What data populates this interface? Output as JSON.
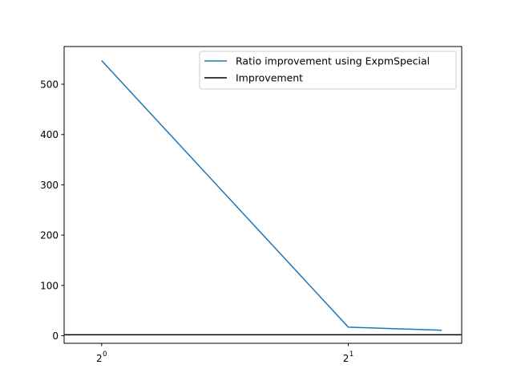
{
  "chart_data": {
    "type": "line",
    "xscale": "log2",
    "xlim": [
      0.9,
      2.75
    ],
    "ylim": [
      -15,
      575
    ],
    "x_ticks": [
      {
        "value": 1,
        "base": "2",
        "exp": "0"
      },
      {
        "value": 2,
        "base": "2",
        "exp": "1"
      }
    ],
    "y_ticks": [
      0,
      100,
      200,
      300,
      400,
      500
    ],
    "series": [
      {
        "name": "Ratio improvement using ExpmSpecial",
        "color": "#1f77b4",
        "x": [
          1,
          2,
          2.6
        ],
        "y": [
          547,
          17,
          11
        ]
      }
    ],
    "reference_line": {
      "name": "Improvement",
      "y": 2,
      "color": "#000000"
    },
    "legend": {
      "placement": "top-right",
      "items": [
        {
          "label": "Ratio improvement using ExpmSpecial",
          "color": "#1f77b4"
        },
        {
          "label": "Improvement",
          "color": "#000000"
        }
      ]
    },
    "grid": false,
    "title": "",
    "xlabel": "",
    "ylabel": ""
  }
}
